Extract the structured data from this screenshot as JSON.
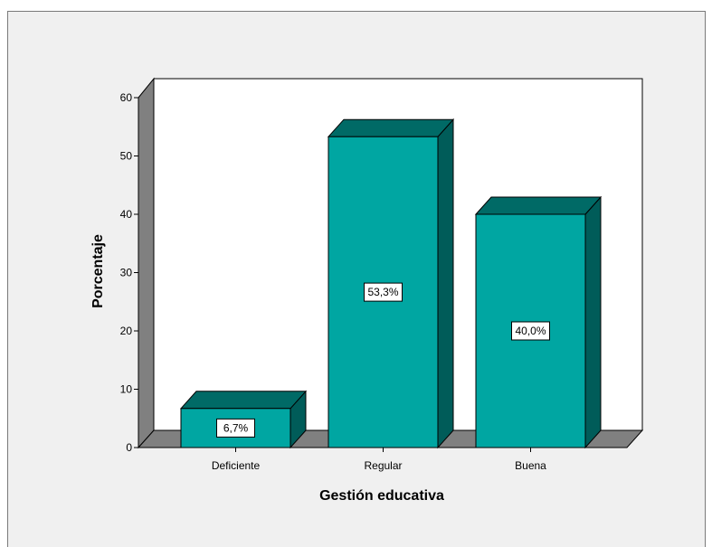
{
  "chart_data": {
    "type": "bar",
    "title": "",
    "xlabel": "Gestión educativa",
    "ylabel": "Porcentaje",
    "categories": [
      "Deficiente",
      "Regular",
      "Buena"
    ],
    "values": [
      6.7,
      53.3,
      40.0
    ],
    "data_labels": [
      "6,7%",
      "53,3%",
      "40,0%"
    ],
    "ylim": [
      0,
      60
    ],
    "yticks": [
      "0",
      "10",
      "20",
      "30",
      "40",
      "50",
      "60"
    ],
    "grid": false,
    "legend": "none",
    "style": "3d",
    "colors": {
      "bar_front": "#00a6a2",
      "bar_top": "#006a66",
      "bar_side": "#005c59",
      "floor": "#808080",
      "wall": "#f0f0f0",
      "plot_bg": "#ffffff"
    }
  }
}
